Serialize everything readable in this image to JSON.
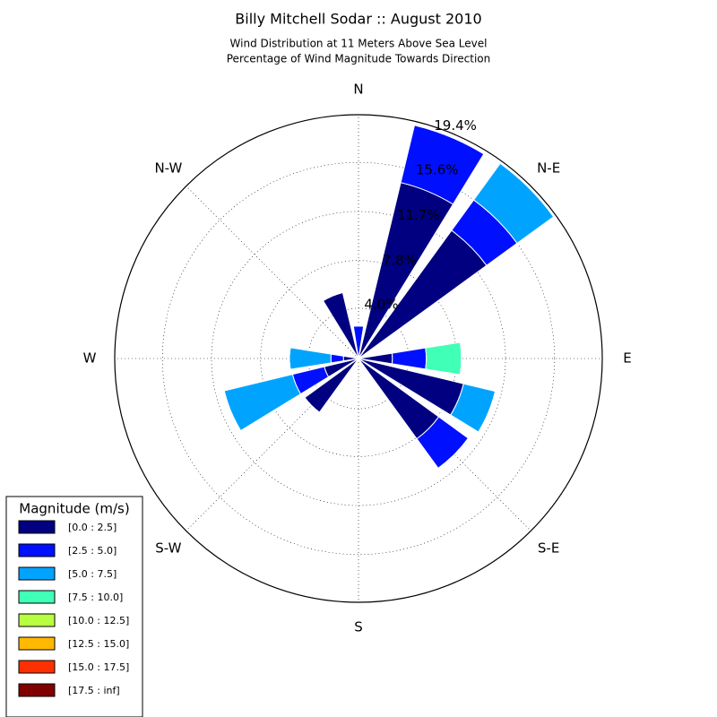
{
  "chart_data": {
    "type": "windrose",
    "title": "Billy Mitchell Sodar :: August 2010",
    "subtitle": [
      "Wind Distribution at 11 Meters Above Sea Level",
      "Percentage of Wind Magnitude Towards Direction"
    ],
    "categories": [
      "N",
      null,
      "N-E",
      null,
      "E",
      null,
      "S-E",
      null,
      "S",
      null,
      "S-W",
      null,
      "W",
      null,
      "N-W",
      null
    ],
    "rlim": [
      0,
      19.4
    ],
    "rticks": [
      {
        "value": 4.0,
        "label": "4.0%"
      },
      {
        "value": 7.8,
        "label": "7.8%"
      },
      {
        "value": 11.7,
        "label": "11.7%"
      },
      {
        "value": 15.6,
        "label": "15.6%"
      },
      {
        "value": 19.4,
        "label": "19.4%"
      }
    ],
    "grid": true,
    "legend_title": "Magnitude (m/s)",
    "legend_position": "lower left",
    "series": [
      {
        "name": "[0.0 : 2.5]",
        "color": "#000080",
        "values": [
          0,
          14.4,
          12.6,
          0,
          2.7,
          8.6,
          7.9,
          0,
          0,
          0,
          5.3,
          2.8,
          1.2,
          0,
          0,
          5.4
        ]
      },
      {
        "name": "[2.5 : 5.0]",
        "color": "#0010ff",
        "values": [
          2.6,
          4.7,
          3.0,
          0,
          2.7,
          0,
          2.9,
          0,
          0,
          0,
          0,
          2.6,
          1.0,
          0,
          0,
          0
        ]
      },
      {
        "name": "[5.0 : 7.5]",
        "color": "#00a4ff",
        "values": [
          0,
          0,
          3.6,
          0,
          0,
          2.6,
          0,
          0,
          0,
          0,
          0,
          5.6,
          3.3,
          0,
          0,
          0
        ]
      },
      {
        "name": "[7.5 : 10.0]",
        "color": "#40ffb7",
        "values": [
          0,
          0,
          0,
          0,
          2.8,
          0,
          0,
          0,
          0,
          0,
          0,
          0,
          0,
          0,
          0,
          0
        ]
      },
      {
        "name": "[10.0 : 12.5]",
        "color": "#b7ff40",
        "values": [
          0,
          0,
          0,
          0,
          0,
          0,
          0,
          0,
          0,
          0,
          0,
          0,
          0,
          0,
          0,
          0
        ]
      },
      {
        "name": "[12.5 : 15.0]",
        "color": "#ffb900",
        "values": [
          0,
          0,
          0,
          0,
          0,
          0,
          0,
          0,
          0,
          0,
          0,
          0,
          0,
          0,
          0,
          0
        ]
      },
      {
        "name": "[15.0 : 17.5]",
        "color": "#ff3000",
        "values": [
          0,
          0,
          0,
          0,
          0,
          0,
          0,
          0,
          0,
          0,
          0,
          0,
          0,
          0,
          0,
          0
        ]
      },
      {
        "name": "[17.5 : inf]",
        "color": "#800000",
        "values": [
          0,
          0,
          0,
          0,
          0,
          0,
          0,
          0,
          0,
          0,
          0,
          0,
          0,
          0,
          0,
          0
        ]
      }
    ]
  }
}
